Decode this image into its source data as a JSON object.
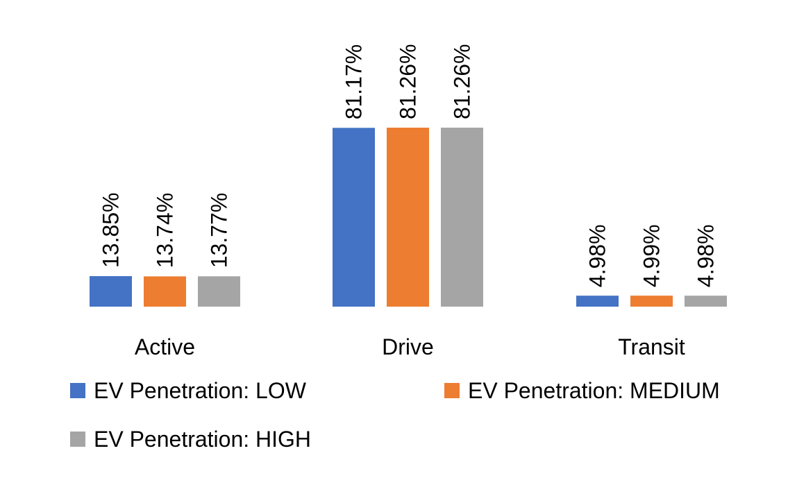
{
  "chart_data": {
    "type": "bar",
    "title": "",
    "xlabel": "",
    "ylabel": "",
    "categories": [
      "Active",
      "Drive",
      "Transit"
    ],
    "series": [
      {
        "name": "EV Penetration: LOW",
        "color": "#4472C4",
        "values": [
          13.85,
          81.17,
          4.98
        ],
        "labels": [
          "13.85%",
          "81.17%",
          "4.98%"
        ]
      },
      {
        "name": "EV Penetration: MEDIUM",
        "color": "#ED7D31",
        "values": [
          13.74,
          81.26,
          4.99
        ],
        "labels": [
          "13.74%",
          "81.26%",
          "4.99%"
        ]
      },
      {
        "name": "EV Penetration: HIGH",
        "color": "#A5A5A5",
        "values": [
          13.77,
          81.26,
          4.98
        ],
        "labels": [
          "13.77%",
          "81.26%",
          "4.98%"
        ]
      }
    ],
    "ylim": [
      0,
      81.26
    ],
    "grid": false,
    "legend_position": "bottom"
  }
}
